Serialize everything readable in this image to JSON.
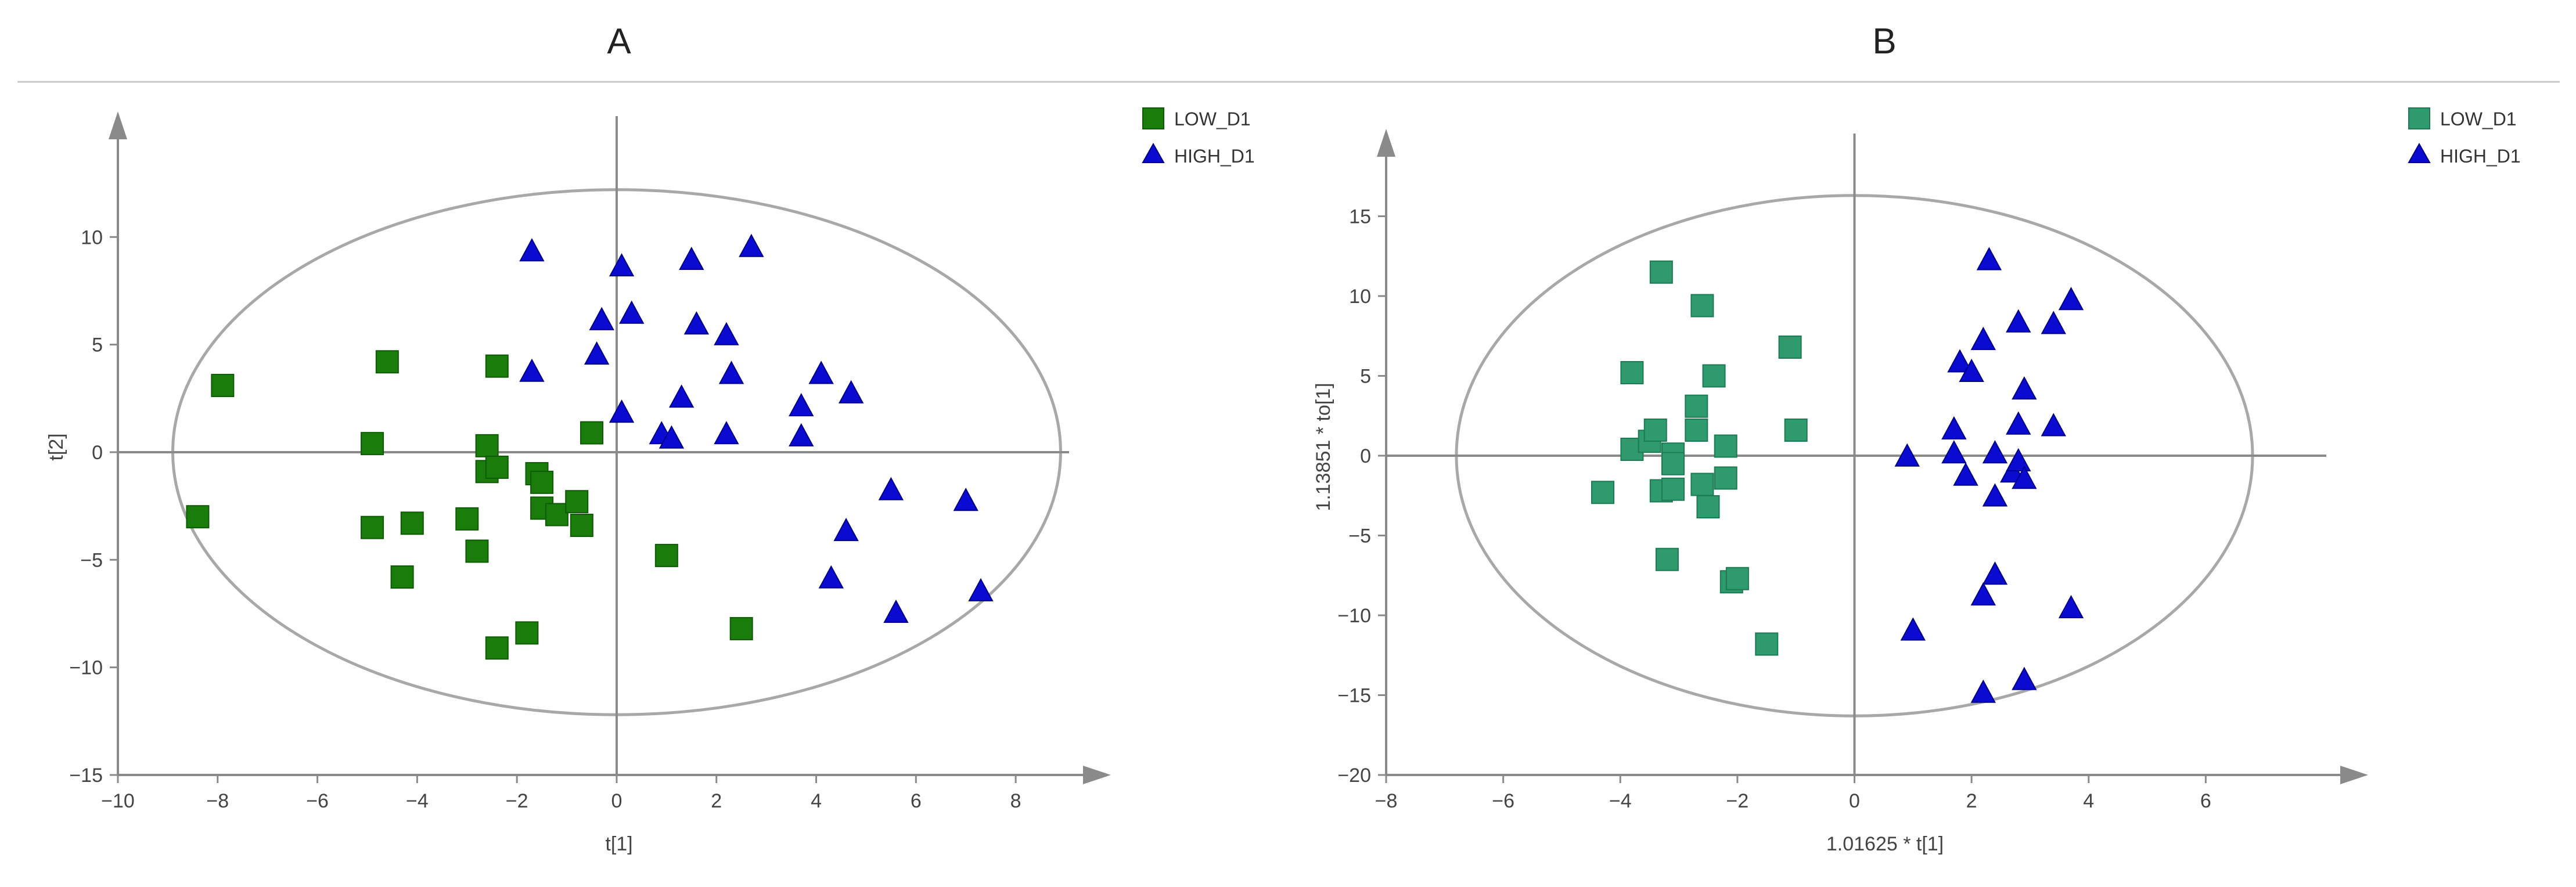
{
  "colors": {
    "low_a": "#1a7d0b",
    "low_a_edge": "#0e5a05",
    "low_b": "#2e9a6d",
    "low_b_edge": "#1d7a52",
    "high": "#0a0ad0",
    "high_edge": "#00008a",
    "axis": "#8a8a8a",
    "ellipse": "#a8a8a8",
    "divider": "#c8c8c8"
  },
  "chart_data": [
    {
      "panel": "A",
      "type": "scatter",
      "title": "A",
      "xlabel": "t[1]",
      "ylabel": "t[2]",
      "xlim": [
        -10,
        9
      ],
      "ylim": [
        -15,
        14
      ],
      "xticks": [
        -10,
        -8,
        -6,
        -4,
        -2,
        0,
        2,
        4,
        6,
        8
      ],
      "yticks": [
        -15,
        -10,
        -5,
        0,
        5,
        10
      ],
      "ellipse": {
        "cx": 0,
        "cy": 0,
        "rx": 8.9,
        "ry": 12.2
      },
      "legend_position": "top-right",
      "series": [
        {
          "name": "LOW_D1",
          "marker": "square",
          "color_key": "low_a",
          "points": [
            [
              -8.4,
              -3
            ],
            [
              -7.9,
              3.1
            ],
            [
              -4.9,
              0.4
            ],
            [
              -4.9,
              -3.5
            ],
            [
              -4.6,
              4.2
            ],
            [
              -4.3,
              -5.8
            ],
            [
              -4.1,
              -3.3
            ],
            [
              -3.0,
              -3.1
            ],
            [
              -2.8,
              -4.6
            ],
            [
              -2.6,
              0.3
            ],
            [
              -2.6,
              -0.9
            ],
            [
              -2.4,
              -0.7
            ],
            [
              -2.4,
              4.0
            ],
            [
              -2.4,
              -9.1
            ],
            [
              -1.8,
              -8.4
            ],
            [
              -1.6,
              -1.0
            ],
            [
              -1.5,
              -1.4
            ],
            [
              -1.5,
              -2.6
            ],
            [
              -1.2,
              -2.9
            ],
            [
              -0.8,
              -2.3
            ],
            [
              -0.7,
              -3.4
            ],
            [
              -0.5,
              0.9
            ],
            [
              1.0,
              -4.8
            ],
            [
              2.5,
              -8.2
            ]
          ]
        },
        {
          "name": "HIGH_D1",
          "marker": "triangle",
          "color_key": "high",
          "points": [
            [
              -1.7,
              9.3
            ],
            [
              -1.7,
              3.7
            ],
            [
              -0.4,
              4.5
            ],
            [
              -0.3,
              6.1
            ],
            [
              0.1,
              1.8
            ],
            [
              0.1,
              8.6
            ],
            [
              0.3,
              6.4
            ],
            [
              0.9,
              0.8
            ],
            [
              1.1,
              0.6
            ],
            [
              1.3,
              2.5
            ],
            [
              1.5,
              8.9
            ],
            [
              1.6,
              5.9
            ],
            [
              2.2,
              5.4
            ],
            [
              2.2,
              0.8
            ],
            [
              2.3,
              3.6
            ],
            [
              2.7,
              9.5
            ],
            [
              3.7,
              2.1
            ],
            [
              3.7,
              0.7
            ],
            [
              4.1,
              3.6
            ],
            [
              4.3,
              -5.9
            ],
            [
              4.6,
              -3.7
            ],
            [
              4.7,
              2.7
            ],
            [
              5.5,
              -1.8
            ],
            [
              5.6,
              -7.5
            ],
            [
              7.0,
              -2.3
            ],
            [
              7.3,
              -6.5
            ]
          ]
        }
      ]
    },
    {
      "panel": "B",
      "type": "scatter",
      "title": "B",
      "xlabel": "1.01625 * t[1]",
      "ylabel": "1.13851 * to[1]",
      "xlim": [
        -8,
        8
      ],
      "ylim": [
        -20,
        18
      ],
      "xticks": [
        -8,
        -6,
        -4,
        -2,
        0,
        2,
        4,
        6
      ],
      "yticks": [
        -20,
        -15,
        -10,
        -5,
        0,
        5,
        10,
        15
      ],
      "ellipse": {
        "cx": 0,
        "cy": 0,
        "rx": 6.8,
        "ry": 16.3
      },
      "legend_position": "top-right",
      "series": [
        {
          "name": "LOW_D1",
          "marker": "square",
          "color_key": "low_b",
          "points": [
            [
              -4.3,
              -2.3
            ],
            [
              -3.8,
              5.2
            ],
            [
              -3.8,
              0.4
            ],
            [
              -3.5,
              0.9
            ],
            [
              -3.4,
              1.6
            ],
            [
              -3.3,
              11.5
            ],
            [
              -3.3,
              -2.2
            ],
            [
              -3.2,
              -6.5
            ],
            [
              -3.1,
              0.1
            ],
            [
              -3.1,
              -0.5
            ],
            [
              -3.1,
              -2.1
            ],
            [
              -2.7,
              3.1
            ],
            [
              -2.7,
              1.6
            ],
            [
              -2.6,
              9.4
            ],
            [
              -2.6,
              -1.8
            ],
            [
              -2.5,
              -3.2
            ],
            [
              -2.4,
              5.0
            ],
            [
              -2.2,
              0.6
            ],
            [
              -2.2,
              -1.4
            ],
            [
              -2.1,
              -7.9
            ],
            [
              -2.0,
              -7.7
            ],
            [
              -1.5,
              -11.8
            ],
            [
              -1.1,
              6.8
            ],
            [
              -1.0,
              1.6
            ]
          ]
        },
        {
          "name": "HIGH_D1",
          "marker": "triangle",
          "color_key": "high",
          "points": [
            [
              0.9,
              -0.1
            ],
            [
              1.0,
              -11.0
            ],
            [
              1.7,
              1.6
            ],
            [
              1.7,
              0.1
            ],
            [
              1.8,
              5.8
            ],
            [
              1.9,
              -1.3
            ],
            [
              2.0,
              5.2
            ],
            [
              2.2,
              7.2
            ],
            [
              2.2,
              -8.8
            ],
            [
              2.2,
              -14.9
            ],
            [
              2.3,
              12.2
            ],
            [
              2.4,
              0.1
            ],
            [
              2.4,
              -2.6
            ],
            [
              2.4,
              -7.5
            ],
            [
              2.7,
              -1.1
            ],
            [
              2.8,
              8.3
            ],
            [
              2.8,
              1.9
            ],
            [
              2.8,
              -0.4
            ],
            [
              2.9,
              4.1
            ],
            [
              2.9,
              -1.5
            ],
            [
              2.9,
              -14.1
            ],
            [
              3.4,
              8.2
            ],
            [
              3.4,
              1.8
            ],
            [
              3.7,
              9.7
            ],
            [
              3.7,
              -9.6
            ]
          ]
        }
      ]
    }
  ]
}
